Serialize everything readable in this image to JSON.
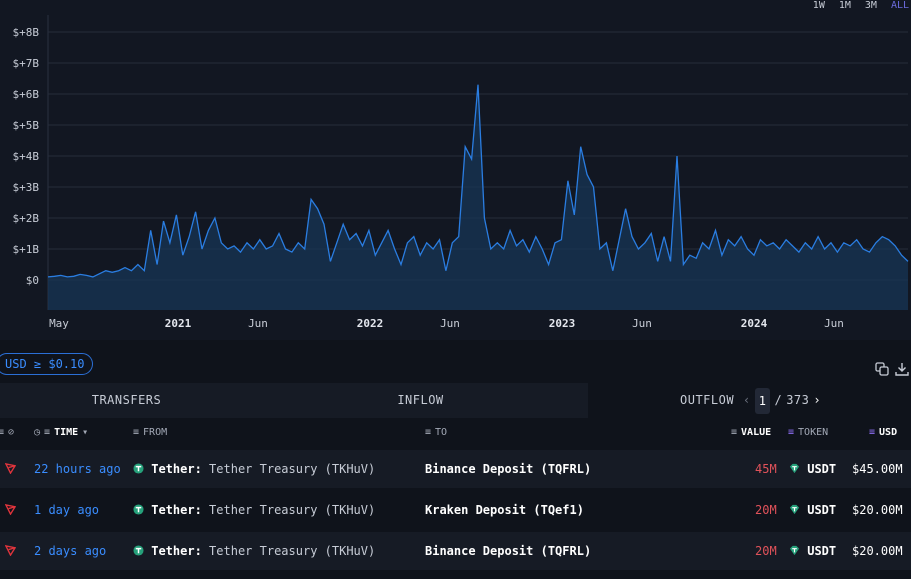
{
  "chart": {
    "range_buttons": [
      {
        "label": "1W",
        "active": false
      },
      {
        "label": "1M",
        "active": false
      },
      {
        "label": "3M",
        "active": false
      },
      {
        "label": "ALL",
        "active": true
      }
    ],
    "line_color": "#2a7de1",
    "fill_color": "#173556"
  },
  "chart_data": {
    "type": "area",
    "title": "",
    "xlabel": "",
    "ylabel": "",
    "ylim": [
      -1,
      8.5
    ],
    "yticks": [
      "$0",
      "$+1B",
      "$+2B",
      "$+3B",
      "$+4B",
      "$+5B",
      "$+6B",
      "$+7B",
      "$+8B"
    ],
    "xticks": [
      "May",
      "2021",
      "Jun",
      "2022",
      "Jun",
      "2023",
      "Jun",
      "2024",
      "Jun"
    ],
    "grid": true,
    "series": [
      {
        "values_billions": [
          0.1,
          0.12,
          0.15,
          0.1,
          0.12,
          0.18,
          0.15,
          0.1,
          0.2,
          0.3,
          0.25,
          0.3,
          0.4,
          0.3,
          0.5,
          0.3,
          1.6,
          0.5,
          1.9,
          1.2,
          2.1,
          0.8,
          1.4,
          2.2,
          1.0,
          1.6,
          2.0,
          1.2,
          1.0,
          1.1,
          0.9,
          1.2,
          1.0,
          1.3,
          1.0,
          1.1,
          1.5,
          1.0,
          0.9,
          1.2,
          1.0,
          2.6,
          2.3,
          1.8,
          0.6,
          1.2,
          1.8,
          1.3,
          1.5,
          1.1,
          1.6,
          0.8,
          1.2,
          1.6,
          1.0,
          0.5,
          1.2,
          1.4,
          0.8,
          1.2,
          1.0,
          1.3,
          0.3,
          1.2,
          1.4,
          4.3,
          3.9,
          6.3,
          2.0,
          1.0,
          1.2,
          1.0,
          1.6,
          1.1,
          1.3,
          0.9,
          1.4,
          1.0,
          0.5,
          1.2,
          1.3,
          3.2,
          2.1,
          4.3,
          3.4,
          3.0,
          1.0,
          1.2,
          0.3,
          1.3,
          2.3,
          1.4,
          1.0,
          1.2,
          1.5,
          0.6,
          1.4,
          0.6,
          4.0,
          0.5,
          0.8,
          0.7,
          1.2,
          1.0,
          1.6,
          0.8,
          1.3,
          1.1,
          1.4,
          1.0,
          0.8,
          1.3,
          1.1,
          1.2,
          1.0,
          1.3,
          1.1,
          0.9,
          1.2,
          1.0,
          1.4,
          1.0,
          1.2,
          0.9,
          1.2,
          1.1,
          1.3,
          1.0,
          0.9,
          1.2,
          1.4,
          1.3,
          1.1,
          0.8,
          0.6
        ]
      }
    ]
  },
  "filter": {
    "label": "USD ≥ $0.10"
  },
  "tabs": {
    "transfers": "TRANSFERS",
    "inflow": "INFLOW",
    "outflow": "OUTFLOW"
  },
  "pager": {
    "current": "1",
    "sep": "/",
    "total": "373"
  },
  "columns": {
    "time": "TIME",
    "from": "FROM",
    "to": "TO",
    "value": "VALUE",
    "token": "TOKEN",
    "usd": "USD"
  },
  "rows": [
    {
      "time": "22 hours ago",
      "from_entity": "Tether:",
      "from_name": "Tether Treasury (TKHuV)",
      "to": "Binance Deposit (TQFRL)",
      "value": "45M",
      "token": "USDT",
      "usd": "$45.00M"
    },
    {
      "time": "1 day ago",
      "from_entity": "Tether:",
      "from_name": "Tether Treasury (TKHuV)",
      "to": "Kraken Deposit (TQef1)",
      "value": "20M",
      "token": "USDT",
      "usd": "$20.00M"
    },
    {
      "time": "2 days ago",
      "from_entity": "Tether:",
      "from_name": "Tether Treasury (TKHuV)",
      "to": "Binance Deposit (TQFRL)",
      "value": "20M",
      "token": "USDT",
      "usd": "$20.00M"
    }
  ],
  "icons": {
    "chain": "tron-icon",
    "entity": "tether-icon",
    "token": "usdt-icon",
    "copy": "copy-icon",
    "download": "download-icon"
  }
}
